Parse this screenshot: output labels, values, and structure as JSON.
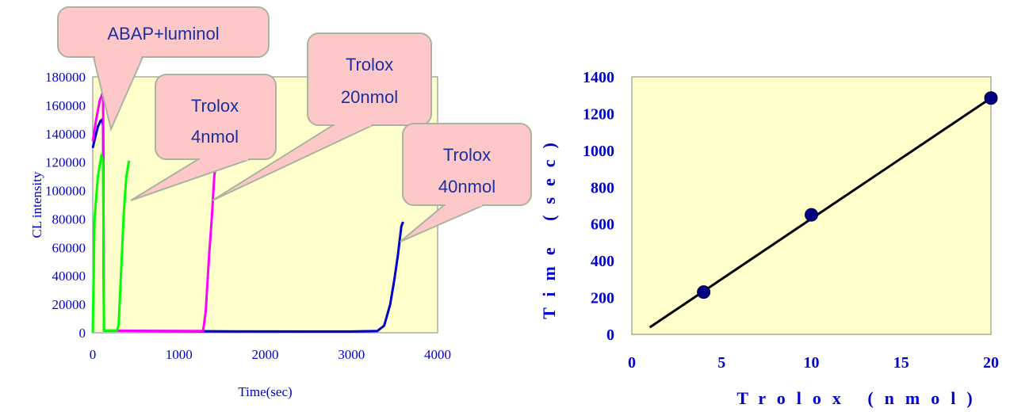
{
  "chart_data": [
    {
      "type": "line",
      "xlabel": "Time(sec)",
      "ylabel": "CL intensity",
      "xlim": [
        0,
        4000
      ],
      "ylim": [
        0,
        180000
      ],
      "xticks": [
        0,
        1000,
        2000,
        3000,
        4000
      ],
      "yticks": [
        0,
        20000,
        40000,
        60000,
        80000,
        100000,
        120000,
        140000,
        160000,
        180000
      ],
      "grid": false,
      "colors": {
        "plot_bg": "#ffffcc",
        "tick_text": "#0000cc",
        "label_text": "#0000cc",
        "callout_fill": "#ffc8c8",
        "callout_stroke": "#a8b4a0",
        "callout_text": "#1a2fa0"
      },
      "series": [
        {
          "color": "#0000cc",
          "points": [
            [
              0,
              130000
            ],
            [
              30,
              138000
            ],
            [
              60,
              145000
            ],
            [
              90,
              149000
            ],
            [
              110,
              150000
            ],
            [
              120,
              145000
            ],
            [
              130,
              1500
            ],
            [
              800,
              1200
            ],
            [
              1600,
              1000
            ],
            [
              2400,
              900
            ],
            [
              3000,
              900
            ],
            [
              3300,
              1200
            ],
            [
              3380,
              5000
            ],
            [
              3450,
              20000
            ],
            [
              3500,
              38000
            ],
            [
              3540,
              55000
            ],
            [
              3580,
              75000
            ],
            [
              3600,
              78000
            ]
          ]
        },
        {
          "color": "#ff00ff",
          "points": [
            [
              0,
              135000
            ],
            [
              40,
              150000
            ],
            [
              80,
              163000
            ],
            [
              110,
              168000
            ],
            [
              120,
              165000
            ],
            [
              130,
              1500
            ],
            [
              600,
              1200
            ],
            [
              1280,
              1200
            ],
            [
              1310,
              15000
            ],
            [
              1350,
              55000
            ],
            [
              1380,
              80000
            ],
            [
              1410,
              110000
            ],
            [
              1440,
              125000
            ]
          ]
        },
        {
          "color": "#00ff00",
          "points": [
            [
              0,
              0
            ],
            [
              20,
              80000
            ],
            [
              60,
              110000
            ],
            [
              100,
              125000
            ],
            [
              120,
              120000
            ],
            [
              130,
              1500
            ],
            [
              280,
              1500
            ],
            [
              300,
              5000
            ],
            [
              330,
              45000
            ],
            [
              360,
              85000
            ],
            [
              390,
              110000
            ],
            [
              420,
              121000
            ]
          ]
        }
      ],
      "callouts": [
        {
          "text_lines": [
            "ABAP+luminol"
          ]
        },
        {
          "text_lines": [
            "Trolox",
            "4nmol"
          ]
        },
        {
          "text_lines": [
            "Trolox",
            "20nmol"
          ]
        },
        {
          "text_lines": [
            "Trolox",
            "40nmol"
          ]
        }
      ]
    },
    {
      "type": "scatter",
      "xlabel": "Trolox (nmol)",
      "ylabel": "Time (sec)",
      "xlim": [
        0,
        20
      ],
      "ylim": [
        0,
        1400
      ],
      "xticks": [
        0,
        5,
        10,
        15,
        20
      ],
      "yticks": [
        0,
        200,
        400,
        600,
        800,
        1000,
        1200,
        1400
      ],
      "grid": false,
      "colors": {
        "plot_bg": "#ffffcc",
        "tick_text": "#0000cc",
        "label_text": "#0000cc",
        "marker": "#000080",
        "trendline": "#000000"
      },
      "points": [
        [
          4,
          230
        ],
        [
          10,
          650
        ],
        [
          20,
          1285
        ]
      ],
      "trendline": [
        [
          1,
          38
        ],
        [
          20,
          1285
        ]
      ]
    }
  ]
}
